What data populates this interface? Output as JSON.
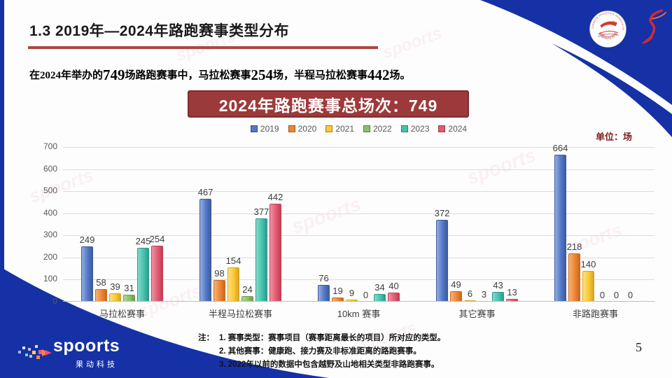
{
  "slide": {
    "title": "1.3 2019年—2024年路跑赛事类型分布",
    "subtitle_parts": [
      "在2024年举办的",
      "749",
      "场路跑赛事中，马拉松赛事",
      "254",
      "场，半程马拉松赛事",
      "442",
      "场。"
    ],
    "banner_text": "2024年路跑赛事总场次：749",
    "unit_label": "单位：场",
    "page_number": "5",
    "notes_prefix": "注：",
    "notes": [
      "1. 赛事类型：赛事项目（赛事距离最长的项目）所对应的类型。",
      "2. 其他赛事：健康跑、接力赛及非标准距离的路跑赛事。",
      "3. 2022年以前的数据中包含越野及山地相关类型非路跑赛事。"
    ],
    "watermark_text": "spoorts"
  },
  "logos": {
    "brand_name": "spoorts",
    "brand_subtext": "果动科技",
    "caa_ring_top": "CHINESE ATHLETICS ASSOCIATION",
    "caa_ring_bottom": "中国田径协会"
  },
  "colors": {
    "accent_blue": "#1531A5",
    "banner_red": "#9C393A",
    "underline_red": "#A94743",
    "unit_label_red": "#7F1D1D"
  },
  "chart_data": {
    "type": "bar",
    "title": "2024年路跑赛事总场次：749",
    "unit": "场",
    "categories": [
      "马拉松赛事",
      "半程马拉松赛事",
      "10km 赛事",
      "其它赛事",
      "非路跑赛事"
    ],
    "series": [
      {
        "name": "2019",
        "color": "#5478C8",
        "light": "#93AEE0",
        "dark": "#3D5C9E",
        "values": [
          249,
          467,
          76,
          372,
          664
        ]
      },
      {
        "name": "2020",
        "color": "#EE8533",
        "light": "#F7B377",
        "dark": "#C96A20",
        "values": [
          58,
          98,
          19,
          49,
          218
        ]
      },
      {
        "name": "2021",
        "color": "#F9C835",
        "light": "#FFE083",
        "dark": "#D9A420",
        "values": [
          39,
          154,
          9,
          6,
          140
        ]
      },
      {
        "name": "2022",
        "color": "#8BBF6B",
        "light": "#B3D69A",
        "dark": "#6B9E4C",
        "values": [
          31,
          24,
          0,
          3,
          0
        ]
      },
      {
        "name": "2023",
        "color": "#46C2AE",
        "light": "#84D9CB",
        "dark": "#2E9B8A",
        "values": [
          245,
          377,
          34,
          43,
          0
        ]
      },
      {
        "name": "2024",
        "color": "#E25C72",
        "light": "#EF93A3",
        "dark": "#C23E55",
        "values": [
          254,
          442,
          40,
          13,
          0
        ]
      }
    ],
    "ylim": [
      0,
      700
    ],
    "ytick_interval": 100,
    "grid": true,
    "legend_position": "top",
    "legend_labels": [
      "2019",
      "2020",
      "2021",
      "2022",
      "2023",
      "2024"
    ]
  }
}
